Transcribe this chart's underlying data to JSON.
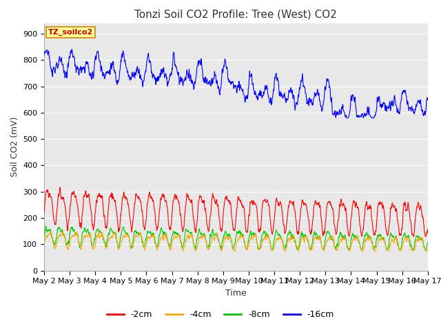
{
  "title": "Tonzi Soil CO2 Profile: Tree (West) CO2",
  "xlabel": "Time",
  "ylabel": "Soil CO2 (mV)",
  "ylim": [
    0,
    940
  ],
  "yticks": [
    0,
    100,
    200,
    300,
    400,
    500,
    600,
    700,
    800,
    900
  ],
  "legend_labels": [
    "-2cm",
    "-4cm",
    "-8cm",
    "-16cm"
  ],
  "legend_colors": [
    "#ff0000",
    "#ffa500",
    "#00cc00",
    "#0000ff"
  ],
  "background_color": "#ffffff",
  "plot_bg_color": "#e8e8e8",
  "grid_color": "#ffffff",
  "title_fontsize": 11,
  "label_fontsize": 9,
  "tick_fontsize": 8,
  "annotation_text": "TZ_soilco2",
  "annotation_color": "#cc0000",
  "annotation_bg": "#ffff99",
  "annotation_border": "#cc8800",
  "xticklabels": [
    "May 2",
    "May 3",
    "May 4",
    "May 5",
    "May 6",
    "May 7",
    "May 8",
    "May 9",
    "May 10",
    "May 11",
    "May 12",
    "May 13",
    "May 14",
    "May 15",
    "May 16",
    "May 17"
  ],
  "n_points": 1440,
  "n_days": 15
}
